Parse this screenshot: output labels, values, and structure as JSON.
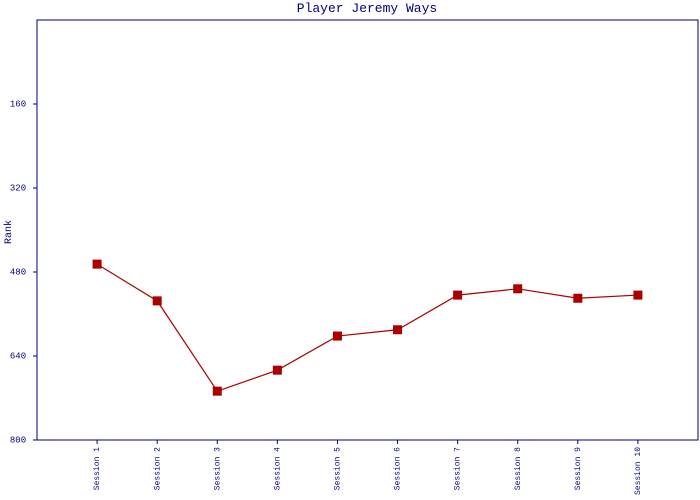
{
  "chart_data": {
    "type": "line",
    "title": "Player Jeremy Ways",
    "y_label": "Rank",
    "categories": [
      "Session 1",
      "Session 2",
      "Session 3",
      "Session 4",
      "Session 5",
      "Session 6",
      "Session 7",
      "Session 8",
      "Session 9",
      "Session 10"
    ],
    "series": [
      {
        "name": "Rank",
        "color": "#aa0000",
        "values": [
          465,
          535,
          707,
          667,
          602,
          590,
          524,
          512,
          530,
          524
        ]
      }
    ],
    "ylim": [
      0,
      800
    ],
    "yticks": [
      160,
      320,
      480,
      640,
      800
    ],
    "y_inverted": true,
    "grid": false,
    "axis_color": "#000080",
    "marker": "square"
  }
}
